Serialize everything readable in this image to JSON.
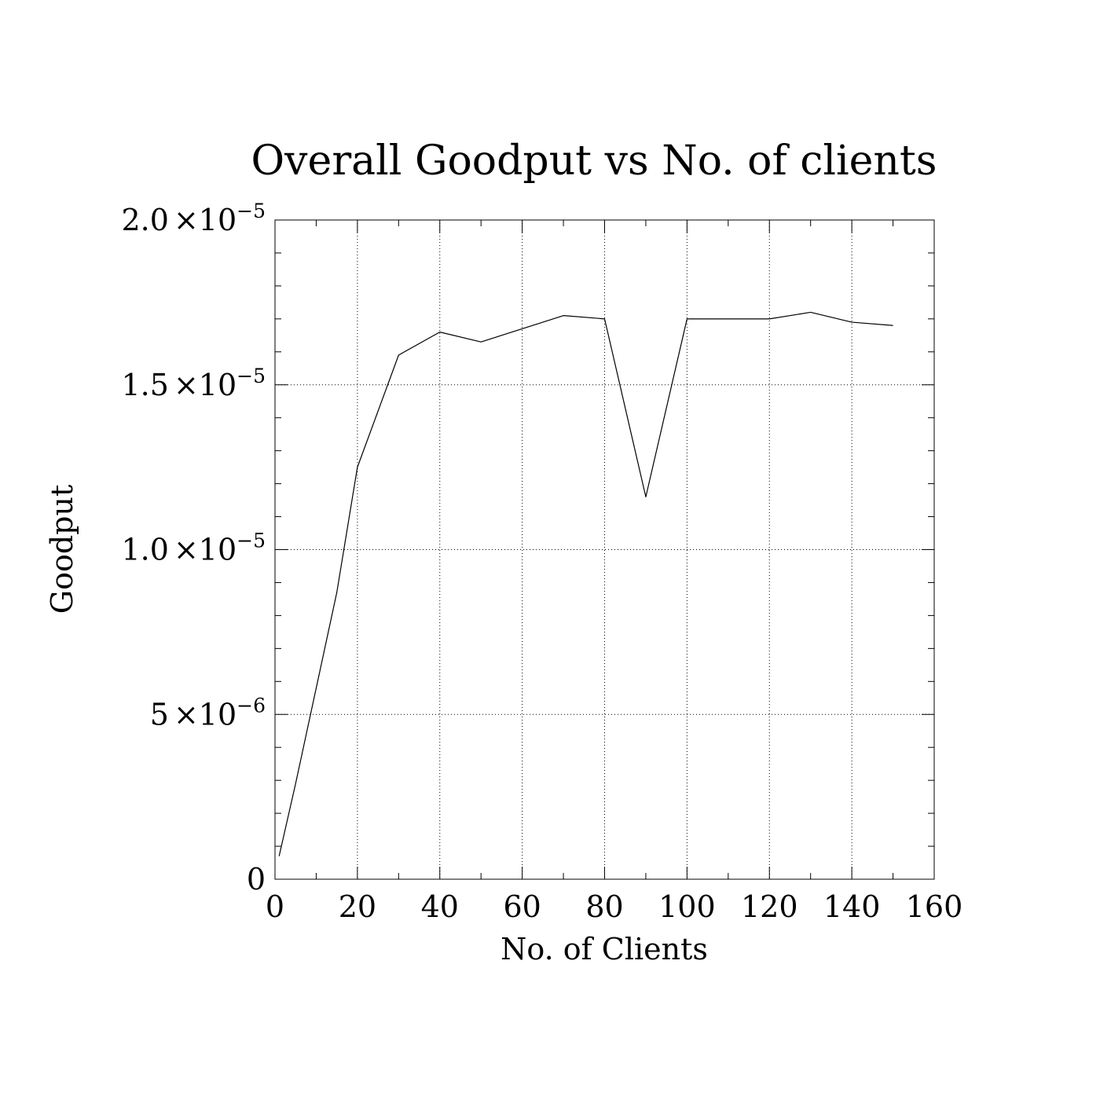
{
  "chart_data": {
    "type": "line",
    "title": "Overall Goodput vs No. of clients",
    "xlabel": "No. of Clients",
    "ylabel": "Goodput",
    "xlim": [
      0,
      160
    ],
    "ylim": [
      0,
      2e-05
    ],
    "grid": true,
    "x_ticks": [
      {
        "value": 0,
        "label": "0"
      },
      {
        "value": 20,
        "label": "20"
      },
      {
        "value": 40,
        "label": "40"
      },
      {
        "value": 60,
        "label": "60"
      },
      {
        "value": 80,
        "label": "80"
      },
      {
        "value": 100,
        "label": "100"
      },
      {
        "value": 120,
        "label": "120"
      },
      {
        "value": 140,
        "label": "140"
      },
      {
        "value": 160,
        "label": "160"
      }
    ],
    "y_ticks": [
      {
        "value": 0,
        "mantissa": "0",
        "times": "",
        "base": "",
        "exponent": ""
      },
      {
        "value": 5e-06,
        "mantissa": "5",
        "times": "×",
        "base": "10",
        "exponent": "−6"
      },
      {
        "value": 1e-05,
        "mantissa": "1.0",
        "times": "×",
        "base": "10",
        "exponent": "−5"
      },
      {
        "value": 1.5e-05,
        "mantissa": "1.5",
        "times": "×",
        "base": "10",
        "exponent": "−5"
      },
      {
        "value": 2e-05,
        "mantissa": "2.0",
        "times": "×",
        "base": "10",
        "exponent": "−5"
      }
    ],
    "series": [
      {
        "x": [
          1,
          5,
          10,
          15,
          20,
          30,
          40,
          50,
          60,
          70,
          80,
          90,
          100,
          110,
          120,
          130,
          140,
          150
        ],
        "y": [
          7e-07,
          2.9e-06,
          5.8e-06,
          8.7e-06,
          1.25e-05,
          1.59e-05,
          1.66e-05,
          1.63e-05,
          1.67e-05,
          1.71e-05,
          1.7e-05,
          1.16e-05,
          1.7e-05,
          1.7e-05,
          1.7e-05,
          1.72e-05,
          1.69e-05,
          1.68e-05
        ],
        "color": "#000000"
      }
    ]
  }
}
